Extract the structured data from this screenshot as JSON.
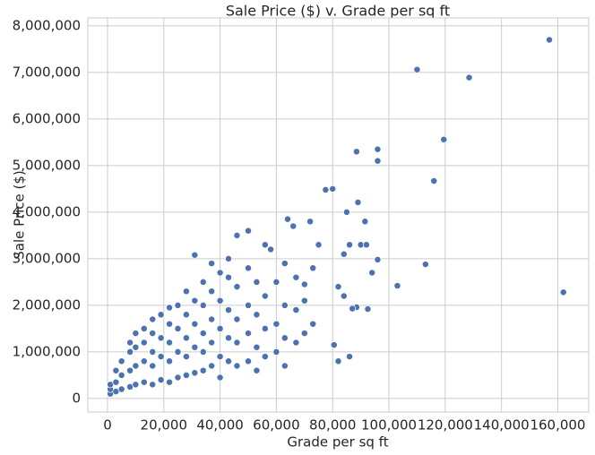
{
  "chart_data": {
    "type": "scatter",
    "title": "Sale Price ($) v. Grade per sq ft",
    "x_label": "Grade per sq ft",
    "y_label": "Sale Price ($)",
    "color": "#4c72b0",
    "grid": true,
    "xlim": [
      -7000,
      171000
    ],
    "ylim": [
      -290000,
      8170000
    ],
    "xticks": [
      0,
      {
        "value": 20000,
        "label": "20,000"
      },
      {
        "value": 40000,
        "label": "40,000"
      },
      {
        "value": 60000,
        "label": "60,000"
      },
      {
        "value": 80000,
        "label": "80,000"
      },
      {
        "value": 100000,
        "label": "100,000"
      },
      {
        "value": 120000,
        "label": "120,000"
      },
      {
        "value": 140000,
        "label": "140,000"
      },
      {
        "value": 160000,
        "label": "160,000"
      }
    ],
    "yticks": [
      0,
      {
        "value": 1000000,
        "label": "1,000,000"
      },
      {
        "value": 2000000,
        "label": "2,000,000"
      },
      {
        "value": 3000000,
        "label": "3,000,000"
      },
      {
        "value": 4000000,
        "label": "4,000,000"
      },
      {
        "value": 5000000,
        "label": "5,000,000"
      },
      {
        "value": 6000000,
        "label": "6,000,000"
      },
      {
        "value": 7000000,
        "label": "7,000,000"
      },
      {
        "value": 8000000,
        "label": "8,000,000"
      }
    ],
    "x": [
      1000,
      1000,
      1000,
      3000,
      3000,
      3000,
      5000,
      5000,
      5000,
      8000,
      8000,
      8000,
      8000,
      10000,
      10000,
      10000,
      10000,
      13000,
      13000,
      13000,
      13000,
      16000,
      16000,
      16000,
      16000,
      16000,
      19000,
      19000,
      19000,
      19000,
      22000,
      22000,
      22000,
      22000,
      22000,
      25000,
      25000,
      25000,
      25000,
      28000,
      28000,
      28000,
      28000,
      28000,
      31000,
      31000,
      31000,
      31000,
      31000,
      34000,
      34000,
      34000,
      34000,
      34000,
      37000,
      37000,
      37000,
      37000,
      37000,
      40000,
      40000,
      40000,
      40000,
      40000,
      43000,
      43000,
      43000,
      43000,
      43000,
      46000,
      46000,
      46000,
      46000,
      46000,
      50000,
      50000,
      50000,
      50000,
      50000,
      53000,
      53000,
      53000,
      53000,
      56000,
      56000,
      56000,
      56000,
      60000,
      60000,
      60000,
      63000,
      63000,
      63000,
      63000,
      67000,
      67000,
      67000,
      70000,
      70000,
      70000,
      73000,
      73000,
      157000,
      110000,
      128500,
      119500,
      96000,
      96000,
      88500,
      116000,
      77500,
      80000,
      89000,
      85000,
      91500,
      162000,
      113000,
      103000,
      96000,
      92500,
      88500,
      87000,
      80500,
      82000,
      86000,
      94000,
      82000,
      84000,
      90000,
      92000,
      86000,
      84000,
      75000,
      72000,
      66000,
      64000,
      58000
    ],
    "values": [
      100000,
      200000,
      300000,
      150000,
      350000,
      600000,
      200000,
      500000,
      800000,
      250000,
      600000,
      1000000,
      1200000,
      300000,
      700000,
      1100000,
      1400000,
      350000,
      800000,
      1200000,
      1500000,
      300000,
      700000,
      1000000,
      1400000,
      1700000,
      400000,
      900000,
      1300000,
      1800000,
      350000,
      800000,
      1200000,
      1600000,
      1950000,
      450000,
      1000000,
      1500000,
      2000000,
      500000,
      900000,
      1300000,
      1800000,
      2300000,
      550000,
      1100000,
      1600000,
      2100000,
      3080000,
      600000,
      1000000,
      1400000,
      2000000,
      2500000,
      700000,
      1200000,
      1700000,
      2300000,
      2900000,
      450000,
      900000,
      1500000,
      2100000,
      2700000,
      800000,
      1300000,
      1900000,
      2600000,
      3000000,
      700000,
      1200000,
      1700000,
      2400000,
      3500000,
      800000,
      1400000,
      2000000,
      2800000,
      3600000,
      600000,
      1100000,
      1800000,
      2500000,
      900000,
      1500000,
      2200000,
      3300000,
      1000000,
      1600000,
      2500000,
      700000,
      1300000,
      2000000,
      2900000,
      1200000,
      1900000,
      2600000,
      1400000,
      2100000,
      2450000,
      1600000,
      2800000,
      7700000,
      7060000,
      6890000,
      5560000,
      5350000,
      5100000,
      5300000,
      4670000,
      4480000,
      4500000,
      4210000,
      4000000,
      3800000,
      2280000,
      2880000,
      2420000,
      2980000,
      1920000,
      1960000,
      1930000,
      1150000,
      800000,
      900000,
      2700000,
      2400000,
      2200000,
      3300000,
      3300000,
      3300000,
      3100000,
      3300000,
      3800000,
      3700000,
      3850000,
      3200000
    ]
  }
}
